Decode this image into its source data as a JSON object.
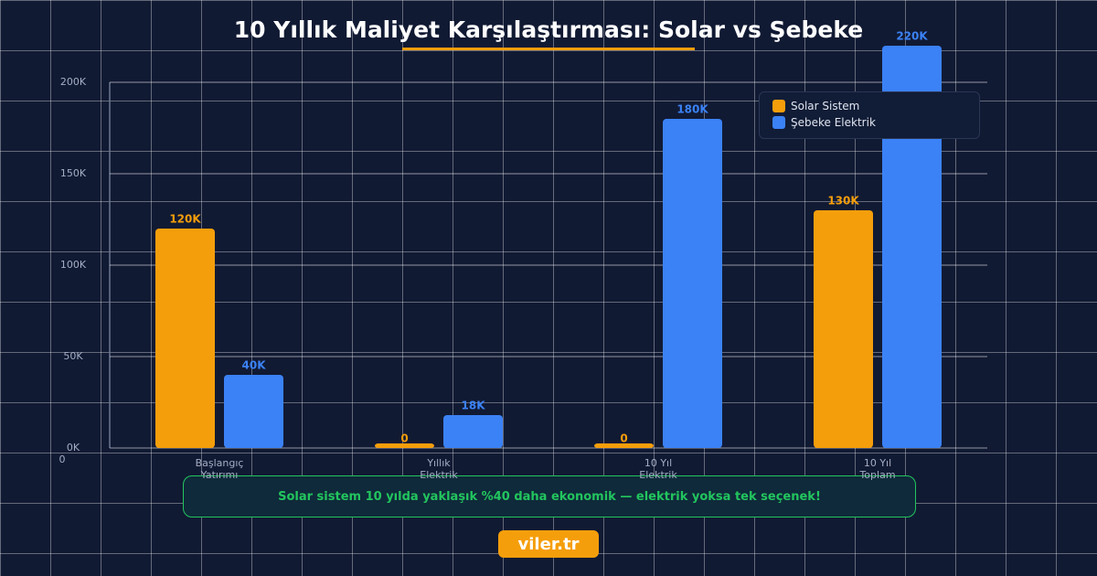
{
  "chart_data": {
    "type": "bar",
    "title": "10 Yıllık Maliyet Karşılaştırması: Solar vs Şebeke",
    "categories": [
      "Başlangıç Yatırımı",
      "Yıllık Elektrik",
      "10 Yıl Elektrik",
      "10 Yıl Toplam"
    ],
    "series": [
      {
        "name": "Solar Sistem",
        "color": "#f59e0b",
        "values": [
          120000,
          0,
          0,
          130000
        ],
        "value_labels": [
          "120K",
          "0",
          "0",
          "130K"
        ]
      },
      {
        "name": "Şebeke Elektrik",
        "color": "#3b82f6",
        "values": [
          40000,
          18000,
          180000,
          220000
        ],
        "value_labels": [
          "40K",
          "18K",
          "180K",
          "220K"
        ]
      }
    ],
    "ylim": [
      0,
      200000
    ],
    "yticks": [
      {
        "value": 0,
        "label": "0K"
      },
      {
        "value": 50000,
        "label": "50K"
      },
      {
        "value": 100000,
        "label": "100K"
      },
      {
        "value": 150000,
        "label": "150K"
      },
      {
        "value": 200000,
        "label": "200K"
      }
    ],
    "origin_label": "0",
    "grid": true,
    "legend": "top-right",
    "annotation": "Solar sistem 10 yılda yaklaşık %40 daha ekonomik — elektrik yoksa tek seçenek!"
  },
  "footer": "viler.tr"
}
